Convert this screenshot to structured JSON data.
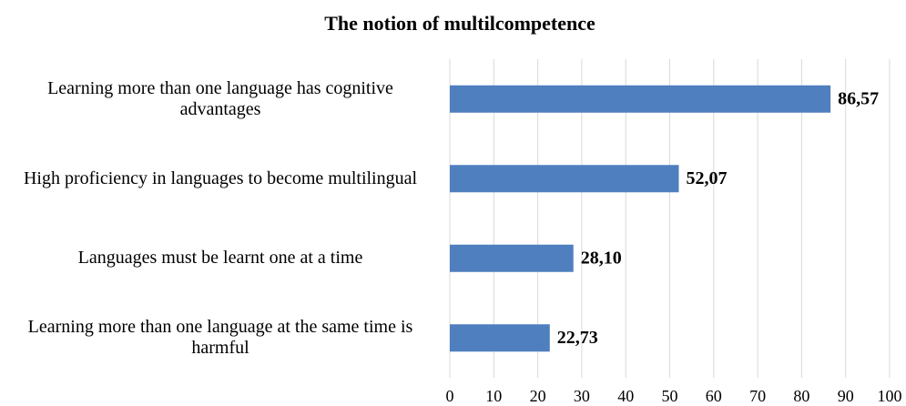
{
  "chart_data": {
    "type": "bar",
    "orientation": "horizontal",
    "title": "The notion of multilcompetence",
    "categories": [
      "Learning more than one language has cognitive advantages",
      "High proficiency in languages to become multilingual",
      "Languages must be learnt one at a time",
      "Learning more than one language at the same time is harmful"
    ],
    "values": [
      86.57,
      52.07,
      28.1,
      22.73
    ],
    "value_labels": [
      "86,57",
      "52,07",
      "28,10",
      "22,73"
    ],
    "color": "#4f7fbf",
    "xlim": [
      0,
      100
    ],
    "xticks": [
      0,
      10,
      20,
      30,
      40,
      50,
      60,
      70,
      80,
      90,
      100
    ],
    "grid": true
  }
}
